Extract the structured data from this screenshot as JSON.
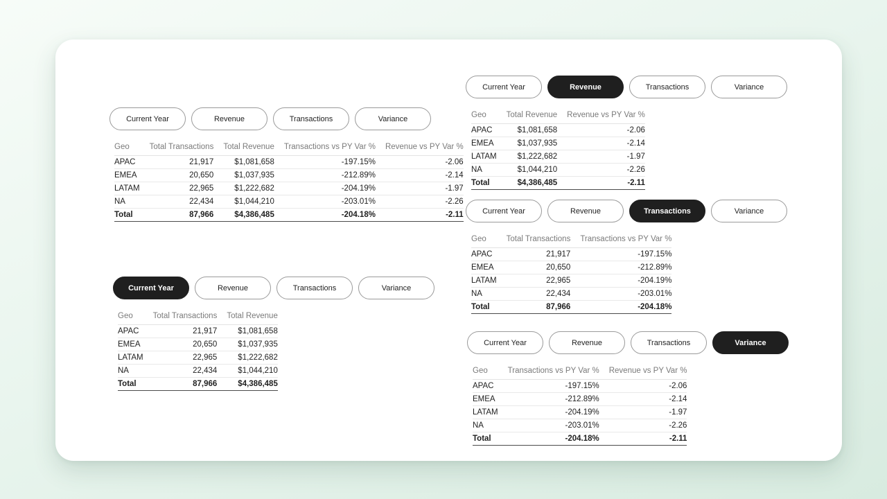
{
  "background": {
    "gradient_start": "#f7fcf8",
    "gradient_end": "#d8ebe0"
  },
  "accent": {
    "active_bg": "#1f1f1f",
    "active_fg": "#ffffff",
    "button_border": "#9a9a9a",
    "card_bg": "#ffffff"
  },
  "button_labels": [
    "Current Year",
    "Revenue",
    "Transactions",
    "Variance"
  ],
  "panels": [
    {
      "key": "overview",
      "active_index": -1,
      "columns": [
        "Geo",
        "Total Transactions",
        "Total Revenue",
        "Transactions vs PY Var %",
        "Revenue vs PY Var %"
      ],
      "rows": [
        [
          "APAC",
          "21,917",
          "$1,081,658",
          "-197.15%",
          "-2.06"
        ],
        [
          "EMEA",
          "20,650",
          "$1,037,935",
          "-212.89%",
          "-2.14"
        ],
        [
          "LATAM",
          "22,965",
          "$1,222,682",
          "-204.19%",
          "-1.97"
        ],
        [
          "NA",
          "22,434",
          "$1,044,210",
          "-203.01%",
          "-2.26"
        ]
      ],
      "total_row": [
        "Total",
        "87,966",
        "$4,386,485",
        "-204.18%",
        "-2.11"
      ]
    },
    {
      "key": "current-year",
      "active_index": 0,
      "columns": [
        "Geo",
        "Total Transactions",
        "Total Revenue"
      ],
      "rows": [
        [
          "APAC",
          "21,917",
          "$1,081,658"
        ],
        [
          "EMEA",
          "20,650",
          "$1,037,935"
        ],
        [
          "LATAM",
          "22,965",
          "$1,222,682"
        ],
        [
          "NA",
          "22,434",
          "$1,044,210"
        ]
      ],
      "total_row": [
        "Total",
        "87,966",
        "$4,386,485"
      ]
    },
    {
      "key": "revenue",
      "active_index": 1,
      "columns": [
        "Geo",
        "Total Revenue",
        "Revenue vs PY Var %"
      ],
      "rows": [
        [
          "APAC",
          "$1,081,658",
          "-2.06"
        ],
        [
          "EMEA",
          "$1,037,935",
          "-2.14"
        ],
        [
          "LATAM",
          "$1,222,682",
          "-1.97"
        ],
        [
          "NA",
          "$1,044,210",
          "-2.26"
        ]
      ],
      "total_row": [
        "Total",
        "$4,386,485",
        "-2.11"
      ]
    },
    {
      "key": "transactions",
      "active_index": 2,
      "columns": [
        "Geo",
        "Total Transactions",
        "Transactions vs PY Var %"
      ],
      "rows": [
        [
          "APAC",
          "21,917",
          "-197.15%"
        ],
        [
          "EMEA",
          "20,650",
          "-212.89%"
        ],
        [
          "LATAM",
          "22,965",
          "-204.19%"
        ],
        [
          "NA",
          "22,434",
          "-203.01%"
        ]
      ],
      "total_row": [
        "Total",
        "87,966",
        "-204.18%"
      ]
    },
    {
      "key": "variance",
      "active_index": 3,
      "columns": [
        "Geo",
        "Transactions vs PY Var %",
        "Revenue vs PY Var %"
      ],
      "rows": [
        [
          "APAC",
          "-197.15%",
          "-2.06"
        ],
        [
          "EMEA",
          "-212.89%",
          "-2.14"
        ],
        [
          "LATAM",
          "-204.19%",
          "-1.97"
        ],
        [
          "NA",
          "-203.01%",
          "-2.26"
        ]
      ],
      "total_row": [
        "Total",
        "-204.18%",
        "-2.11"
      ]
    }
  ]
}
